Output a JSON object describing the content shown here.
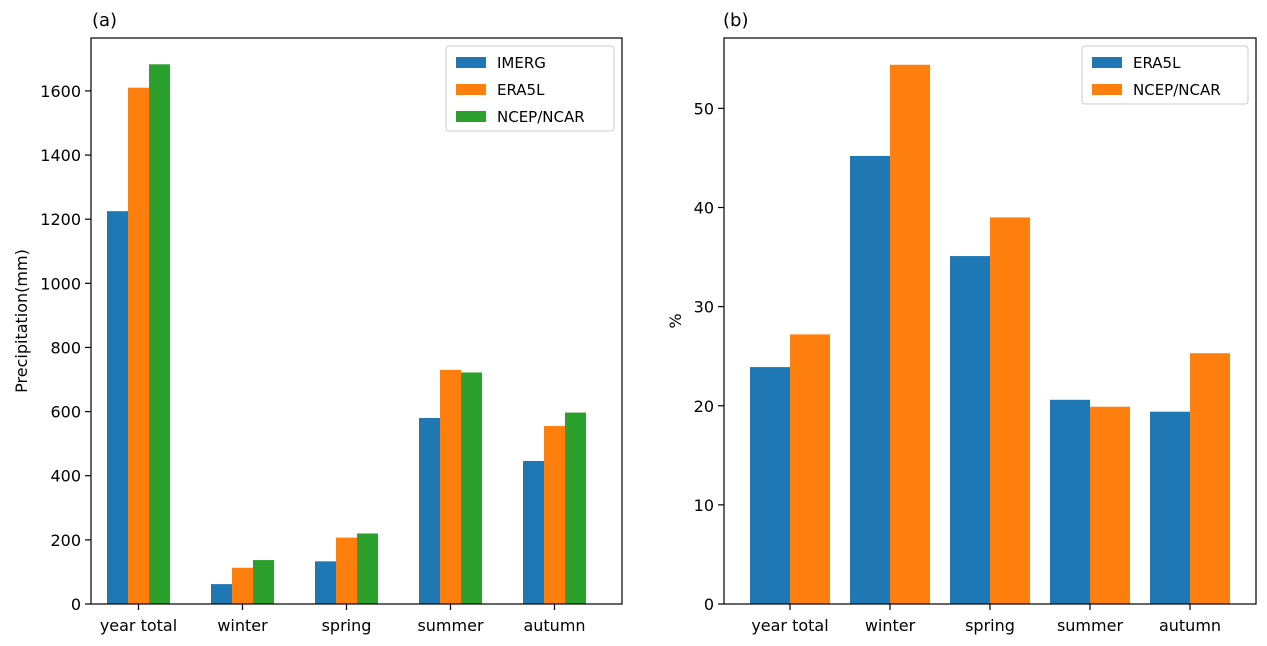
{
  "chart_data": [
    {
      "type": "bar",
      "panel_label": "(a)",
      "title": "",
      "xlabel": "",
      "ylabel": "Precipitation(mm)",
      "categories": [
        "year total",
        "winter",
        "spring",
        "summer",
        "autumn"
      ],
      "series": [
        {
          "name": "IMERG",
          "color": "#1f77b4",
          "values": [
            1225,
            62,
            133,
            580,
            446
          ]
        },
        {
          "name": "ERA5L",
          "color": "#ff7f0e",
          "values": [
            1610,
            113,
            207,
            730,
            555
          ]
        },
        {
          "name": "NCEP/NCAR",
          "color": "#2ca02c",
          "values": [
            1683,
            137,
            220,
            722,
            597
          ]
        }
      ],
      "ylim": [
        0,
        1765
      ],
      "yticks": [
        0,
        200,
        400,
        600,
        800,
        1000,
        1200,
        1400,
        1600
      ],
      "grid": false,
      "legend_position": "top-right"
    },
    {
      "type": "bar",
      "panel_label": "(b)",
      "title": "",
      "xlabel": "",
      "ylabel": "%",
      "categories": [
        "year total",
        "winter",
        "spring",
        "summer",
        "autumn"
      ],
      "series": [
        {
          "name": "ERA5L",
          "color": "#1f77b4",
          "values": [
            23.9,
            45.2,
            35.1,
            20.6,
            19.4
          ]
        },
        {
          "name": "NCEP/NCAR",
          "color": "#ff7f0e",
          "values": [
            27.2,
            54.4,
            39.0,
            19.9,
            25.3
          ]
        }
      ],
      "ylim": [
        0,
        57.1
      ],
      "yticks": [
        0,
        10,
        20,
        30,
        40,
        50
      ],
      "grid": false,
      "legend_position": "top-right"
    }
  ]
}
